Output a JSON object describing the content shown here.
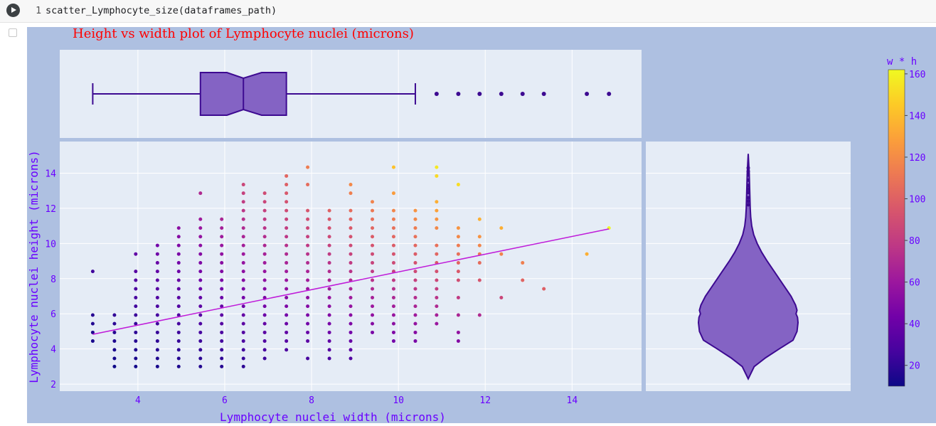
{
  "notebook": {
    "line_number": "1",
    "code": "scatter_Lymphocyte_size(dataframes_path)",
    "run_icon": "play-circle-icon",
    "output_icon": "output-arrow-icon"
  },
  "colors": {
    "paper_bg": "#aec0e1",
    "plot_bg": "#e5ecf6",
    "title": "#ff0000",
    "axis_text": "#6a00ff",
    "box_fill": "#8463c4",
    "box_line": "#3d0a91",
    "trendline": "#bf1bd9"
  },
  "chart_data": {
    "type": "scatter",
    "title": "Height vs width plot of Lymphocyte nuclei (microns)",
    "xlabel": "Lymphocyte nuclei width (microns)",
    "ylabel": "Lymphocyte nuclei height (microns)",
    "xlim": [
      2.2,
      15.6
    ],
    "ylim": [
      1.6,
      15.8
    ],
    "xticks": [
      4,
      6,
      8,
      10,
      12,
      14
    ],
    "yticks": [
      2,
      4,
      6,
      8,
      10,
      12,
      14
    ],
    "color_variable": "w * h",
    "colorscale": "plasma",
    "colorbar": {
      "title": "w * h",
      "range": [
        10,
        162
      ],
      "ticks": [
        20,
        40,
        60,
        80,
        100,
        120,
        140,
        160
      ]
    },
    "trendline": {
      "x": [
        2.96,
        14.85
      ],
      "y": [
        4.83,
        10.83
      ]
    },
    "x_levels": [
      2.96,
      3.46,
      3.95,
      4.45,
      4.94,
      5.44,
      5.93,
      6.43,
      6.92,
      7.42,
      7.91,
      8.41,
      8.9,
      9.4,
      9.89,
      10.39,
      10.88,
      11.38,
      11.87,
      12.37,
      12.86,
      13.35,
      14.34,
      14.85
    ],
    "y_levels": [
      3.0,
      3.46,
      3.95,
      4.45,
      4.94,
      5.44,
      5.93,
      6.43,
      6.92,
      7.42,
      7.91,
      8.41,
      8.9,
      9.4,
      9.89,
      10.39,
      10.88,
      11.38,
      11.87,
      12.37,
      12.86,
      13.35,
      13.84,
      14.34
    ],
    "columns": [
      {
        "x": 2.96,
        "y": [
          4.45,
          4.94,
          5.44,
          5.93,
          8.41
        ]
      },
      {
        "x": 3.46,
        "y": [
          3.0,
          3.46,
          3.95,
          4.45,
          4.94,
          5.44,
          5.93
        ]
      },
      {
        "x": 3.95,
        "y": [
          3.0,
          3.46,
          3.95,
          4.45,
          4.94,
          5.44,
          5.93,
          6.43,
          6.92,
          7.42,
          7.91,
          8.41,
          9.4
        ]
      },
      {
        "x": 4.45,
        "y": [
          3.0,
          3.46,
          3.95,
          4.45,
          4.94,
          5.44,
          5.93,
          6.43,
          6.92,
          7.42,
          7.91,
          8.41,
          8.9,
          9.4,
          9.89
        ]
      },
      {
        "x": 4.94,
        "y": [
          3.0,
          3.46,
          3.95,
          4.45,
          4.94,
          5.44,
          5.93,
          6.43,
          6.92,
          7.42,
          7.91,
          8.41,
          8.9,
          9.4,
          9.89,
          10.39,
          10.88
        ]
      },
      {
        "x": 5.44,
        "y": [
          3.0,
          3.46,
          3.95,
          4.45,
          4.94,
          5.44,
          5.93,
          6.43,
          6.92,
          7.42,
          7.91,
          8.41,
          8.9,
          9.4,
          9.89,
          10.39,
          10.88,
          11.38,
          12.86
        ]
      },
      {
        "x": 5.93,
        "y": [
          3.0,
          3.46,
          3.95,
          4.45,
          4.94,
          5.44,
          5.93,
          6.43,
          6.92,
          7.42,
          7.91,
          8.41,
          8.9,
          9.4,
          9.89,
          10.39,
          10.88,
          11.38
        ]
      },
      {
        "x": 6.43,
        "y": [
          3.0,
          3.46,
          3.95,
          4.45,
          4.94,
          5.44,
          5.93,
          6.43,
          6.92,
          7.42,
          7.91,
          8.41,
          8.9,
          9.4,
          9.89,
          10.39,
          10.88,
          11.38,
          11.87,
          12.37,
          12.86,
          13.35
        ]
      },
      {
        "x": 6.92,
        "y": [
          3.46,
          3.95,
          4.45,
          4.94,
          5.44,
          5.93,
          6.43,
          6.92,
          7.42,
          7.91,
          8.41,
          8.9,
          9.4,
          9.89,
          10.39,
          10.88,
          11.38,
          11.87,
          12.37,
          12.86
        ]
      },
      {
        "x": 7.42,
        "y": [
          3.95,
          4.45,
          4.94,
          5.44,
          5.93,
          6.43,
          6.92,
          7.42,
          7.91,
          8.41,
          8.9,
          9.4,
          9.89,
          10.39,
          10.88,
          11.38,
          11.87,
          12.37,
          12.86,
          13.35,
          13.84
        ]
      },
      {
        "x": 7.91,
        "y": [
          3.46,
          4.45,
          4.94,
          5.44,
          5.93,
          6.43,
          6.92,
          7.42,
          7.91,
          8.41,
          8.9,
          9.4,
          9.89,
          10.39,
          10.88,
          11.38,
          11.87,
          13.35,
          14.34
        ]
      },
      {
        "x": 8.41,
        "y": [
          3.46,
          3.95,
          4.45,
          4.94,
          5.44,
          5.93,
          6.43,
          6.92,
          7.42,
          7.91,
          8.41,
          8.9,
          9.4,
          9.89,
          10.39,
          10.88,
          11.38,
          11.87
        ]
      },
      {
        "x": 8.9,
        "y": [
          3.46,
          3.95,
          4.45,
          4.94,
          5.44,
          5.93,
          6.43,
          6.92,
          7.42,
          7.91,
          8.41,
          8.9,
          9.4,
          9.89,
          10.39,
          10.88,
          11.38,
          11.87,
          12.86,
          13.35
        ]
      },
      {
        "x": 9.4,
        "y": [
          4.94,
          5.44,
          5.93,
          6.43,
          6.92,
          7.42,
          7.91,
          8.41,
          8.9,
          9.4,
          9.89,
          10.39,
          10.88,
          11.38,
          11.87,
          12.37
        ]
      },
      {
        "x": 9.89,
        "y": [
          4.45,
          4.94,
          5.44,
          5.93,
          6.43,
          6.92,
          7.42,
          7.91,
          8.41,
          8.9,
          9.4,
          9.89,
          10.39,
          10.88,
          11.38,
          11.87,
          12.86,
          14.34
        ]
      },
      {
        "x": 10.39,
        "y": [
          4.45,
          4.94,
          5.44,
          5.93,
          6.43,
          6.92,
          7.42,
          7.91,
          8.41,
          8.9,
          9.4,
          9.89,
          10.39,
          10.88,
          11.38,
          11.87
        ]
      },
      {
        "x": 10.88,
        "y": [
          5.44,
          5.93,
          6.43,
          6.92,
          7.42,
          7.91,
          8.41,
          8.9,
          9.4,
          9.89,
          10.88,
          11.38,
          11.87,
          12.37,
          13.84,
          14.34
        ]
      },
      {
        "x": 11.38,
        "y": [
          4.45,
          4.94,
          5.93,
          6.92,
          7.91,
          8.41,
          8.9,
          9.4,
          9.89,
          10.39,
          10.88,
          13.35
        ]
      },
      {
        "x": 11.87,
        "y": [
          5.93,
          7.91,
          8.9,
          9.4,
          9.89,
          10.39,
          11.38
        ]
      },
      {
        "x": 12.37,
        "y": [
          6.92,
          9.4,
          10.88
        ]
      },
      {
        "x": 12.86,
        "y": [
          7.91,
          8.9
        ]
      },
      {
        "x": 13.35,
        "y": [
          7.42
        ]
      },
      {
        "x": 14.34,
        "y": [
          9.4
        ]
      },
      {
        "x": 14.85,
        "y": [
          10.88
        ]
      }
    ],
    "marginal_box": {
      "min": 2.96,
      "q1": 5.44,
      "median": 6.43,
      "q3": 7.42,
      "max": 10.39,
      "notch_low": 6.05,
      "notch_high": 6.85,
      "outliers": [
        10.88,
        11.38,
        11.87,
        12.37,
        12.86,
        13.35,
        14.34,
        14.85
      ]
    },
    "marginal_violin": {
      "min": 2.3,
      "max": 15.1,
      "profile": [
        [
          2.3,
          0.0
        ],
        [
          3.0,
          0.12
        ],
        [
          3.5,
          0.35
        ],
        [
          4.0,
          0.62
        ],
        [
          4.5,
          0.9
        ],
        [
          5.0,
          0.98
        ],
        [
          5.5,
          1.0
        ],
        [
          5.8,
          0.99
        ],
        [
          6.0,
          0.96
        ],
        [
          6.2,
          0.98
        ],
        [
          6.5,
          0.95
        ],
        [
          7.0,
          0.86
        ],
        [
          7.5,
          0.74
        ],
        [
          8.0,
          0.62
        ],
        [
          8.5,
          0.5
        ],
        [
          9.0,
          0.38
        ],
        [
          9.5,
          0.27
        ],
        [
          10.0,
          0.18
        ],
        [
          10.5,
          0.11
        ],
        [
          11.0,
          0.07
        ],
        [
          11.5,
          0.05
        ],
        [
          12.0,
          0.04
        ],
        [
          13.0,
          0.03
        ],
        [
          14.0,
          0.02
        ],
        [
          15.1,
          0.0
        ]
      ],
      "outliers": [
        12.2,
        12.4,
        12.6,
        12.9,
        13.1,
        13.3,
        13.6,
        13.9,
        14.1,
        14.3
      ]
    }
  }
}
